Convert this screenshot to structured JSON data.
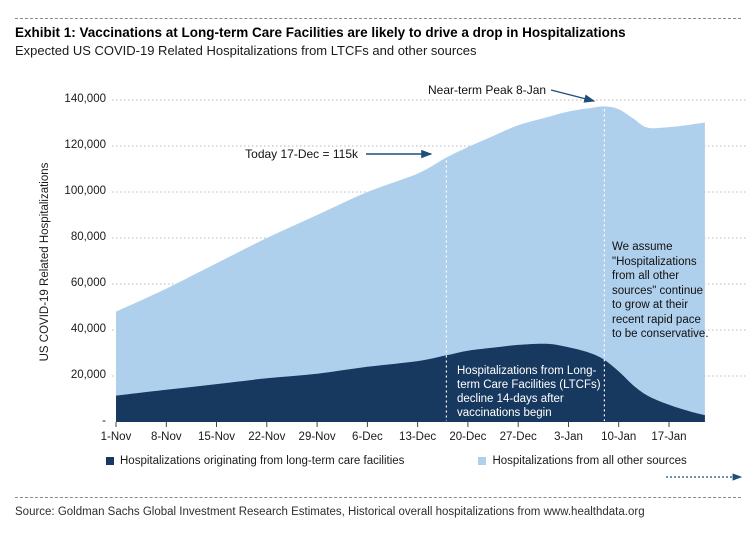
{
  "header": {
    "exhibit_title": "Exhibit 1: Vaccinations at Long-term Care Facilities are likely to drive a drop in Hospitalizations",
    "subtitle": "Expected US COVID-19 Related Hospitalizations from LTCFs and other sources"
  },
  "footer": {
    "source": "Source: Goldman Sachs Global Investment Research Estimates, Historical overall hospitalizations from www.healthdata.org"
  },
  "legend": {
    "items": [
      {
        "label": "Hospitalizations originating from long-term care facilities",
        "color": "#17395f"
      },
      {
        "label": "Hospitalizations from all other sources",
        "color": "#afd0ec"
      }
    ]
  },
  "chart_data": {
    "type": "area",
    "stacked": true,
    "title": "Expected US COVID-19 Related Hospitalizations from LTCFs and other sources",
    "ylabel": "US COVID-19 Related Hospitalizations",
    "ylim": [
      0,
      140000
    ],
    "grid": "horizontal-dotted",
    "y_ticks": [
      {
        "value": 140000,
        "label": "140,000"
      },
      {
        "value": 120000,
        "label": "120,000"
      },
      {
        "value": 100000,
        "label": "100,000"
      },
      {
        "value": 80000,
        "label": "80,000"
      },
      {
        "value": 60000,
        "label": "60,000"
      },
      {
        "value": 40000,
        "label": "40,000"
      },
      {
        "value": 20000,
        "label": "20,000"
      },
      {
        "value": 0,
        "label": "-"
      }
    ],
    "x_ticks": [
      {
        "day": 0,
        "label": "1-Nov"
      },
      {
        "day": 7,
        "label": "8-Nov"
      },
      {
        "day": 14,
        "label": "15-Nov"
      },
      {
        "day": 21,
        "label": "22-Nov"
      },
      {
        "day": 28,
        "label": "29-Nov"
      },
      {
        "day": 35,
        "label": "6-Dec"
      },
      {
        "day": 42,
        "label": "13-Dec"
      },
      {
        "day": 49,
        "label": "20-Dec"
      },
      {
        "day": 56,
        "label": "27-Dec"
      },
      {
        "day": 63,
        "label": "3-Jan"
      },
      {
        "day": 70,
        "label": "10-Jan"
      },
      {
        "day": 77,
        "label": "17-Jan"
      }
    ],
    "series": [
      {
        "name": "Hospitalizations originating from long-term care facilities",
        "key": "ltcf",
        "color": "#17395f"
      },
      {
        "name": "Hospitalizations from all other sources",
        "key": "other",
        "color": "#afd0ec"
      }
    ],
    "points": [
      {
        "date": "1-Nov",
        "day": 0,
        "ltcf": 11500,
        "other": 36500
      },
      {
        "date": "8-Nov",
        "day": 7,
        "ltcf": 14000,
        "other": 44000
      },
      {
        "date": "15-Nov",
        "day": 14,
        "ltcf": 16500,
        "other": 52500
      },
      {
        "date": "22-Nov",
        "day": 21,
        "ltcf": 19000,
        "other": 61000
      },
      {
        "date": "29-Nov",
        "day": 28,
        "ltcf": 21000,
        "other": 69000
      },
      {
        "date": "6-Dec",
        "day": 35,
        "ltcf": 24000,
        "other": 76000
      },
      {
        "date": "13-Dec",
        "day": 42,
        "ltcf": 26500,
        "other": 81500
      },
      {
        "date": "17-Dec",
        "day": 46,
        "ltcf": 29000,
        "other": 86000
      },
      {
        "date": "20-Dec",
        "day": 49,
        "ltcf": 31000,
        "other": 88500
      },
      {
        "date": "24-Dec",
        "day": 53,
        "ltcf": 32500,
        "other": 92500
      },
      {
        "date": "27-Dec",
        "day": 56,
        "ltcf": 33500,
        "other": 95500
      },
      {
        "date": "31-Dec",
        "day": 60,
        "ltcf": 34000,
        "other": 98500
      },
      {
        "date": "3-Jan",
        "day": 63,
        "ltcf": 32500,
        "other": 102500
      },
      {
        "date": "6-Jan",
        "day": 66,
        "ltcf": 30000,
        "other": 106500
      },
      {
        "date": "8-Jan",
        "day": 68,
        "ltcf": 27000,
        "other": 110200
      },
      {
        "date": "10-Jan",
        "day": 70,
        "ltcf": 22000,
        "other": 114000
      },
      {
        "date": "12-Jan",
        "day": 72,
        "ltcf": 16000,
        "other": 116000
      },
      {
        "date": "14-Jan",
        "day": 74,
        "ltcf": 11500,
        "other": 116500
      },
      {
        "date": "17-Jan",
        "day": 77,
        "ltcf": 7500,
        "other": 120700
      },
      {
        "date": "20-Jan",
        "day": 80,
        "ltcf": 4500,
        "other": 124800
      },
      {
        "date": "22-Jan",
        "day": 82,
        "ltcf": 3000,
        "other": 127200
      }
    ],
    "guide_days": [
      46,
      68
    ],
    "annotations": {
      "today": "Today 17-Dec = 115k",
      "peak": "Near-term Peak 8-Jan",
      "ltcf_note": "Hospitalizations from Long-term Care Facilities (LTCFs) decline 14-days after vaccinations begin",
      "other_note": "We assume \"Hospitalizations from all other sources\" continue to grow at their recent rapid pace to be conservative."
    },
    "colors": {
      "ltcf_area": "#17395f",
      "other_area": "#afd0ec",
      "arrow": "#1f4e79",
      "gridline": "#b8b8b8",
      "guide_line": "#ffffff",
      "tick": "#444444"
    }
  }
}
